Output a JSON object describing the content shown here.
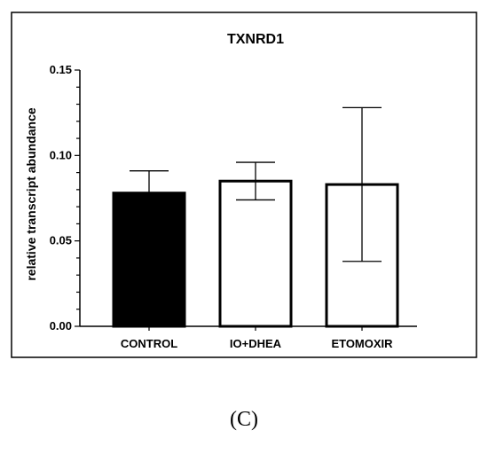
{
  "panel_label": "(C)",
  "chart_data": {
    "type": "bar",
    "title": "TXNRD1",
    "xlabel": "",
    "ylabel": "relative transcript abundance",
    "categories": [
      "CONTROL",
      "IO+DHEA",
      "ETOMOXIR"
    ],
    "values": [
      0.078,
      0.085,
      0.083
    ],
    "error_upper": [
      0.091,
      0.096,
      0.128
    ],
    "error_lower": [
      0.078,
      0.074,
      0.038
    ],
    "bar_fills": [
      "#000000",
      "#ffffff",
      "#ffffff"
    ],
    "ylim": [
      0,
      0.15
    ],
    "yticks": [
      "0.00",
      "0.05",
      "0.10",
      "0.15"
    ],
    "grid": false,
    "legend": "none"
  }
}
